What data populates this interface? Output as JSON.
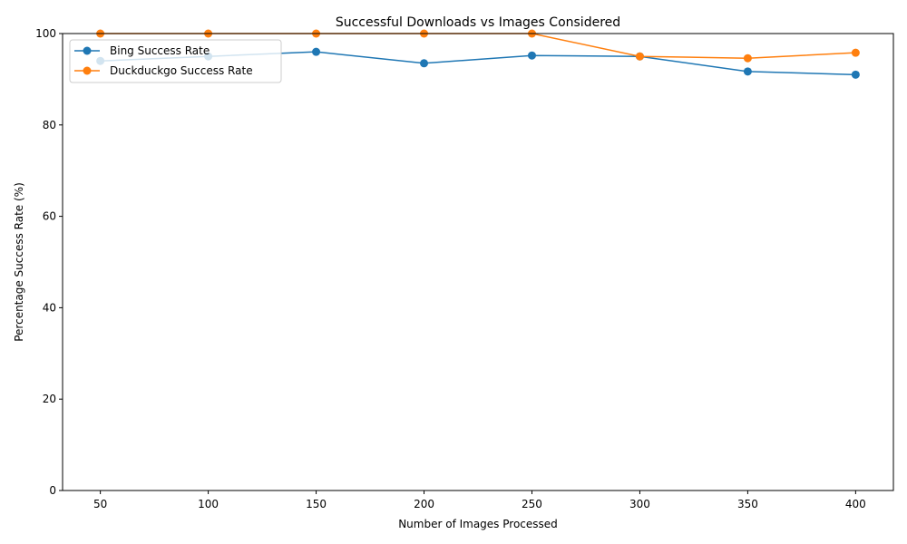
{
  "chart_data": {
    "type": "line",
    "title": "Successful Downloads vs Images Considered",
    "xlabel": "Number of Images Processed",
    "ylabel": "Percentage Success Rate (%)",
    "x": [
      50,
      100,
      150,
      200,
      250,
      300,
      350,
      400
    ],
    "xticks": [
      50,
      100,
      150,
      200,
      250,
      300,
      350,
      400
    ],
    "yticks": [
      0,
      20,
      40,
      60,
      80,
      100
    ],
    "xlim": [
      32.5,
      417.5
    ],
    "ylim": [
      0,
      100
    ],
    "grid": false,
    "legend_position": "top-left",
    "series": [
      {
        "name": "Bing Success Rate",
        "color": "#1f77b4",
        "marker": "circle",
        "values": [
          94.0,
          95.0,
          96.0,
          93.5,
          95.2,
          95.0,
          91.7,
          91.0
        ]
      },
      {
        "name": "Duckduckgo Success Rate",
        "color": "#ff7f0e",
        "marker": "circle",
        "values": [
          100,
          100,
          100,
          100,
          100,
          95.0,
          94.6,
          95.8
        ]
      }
    ]
  }
}
